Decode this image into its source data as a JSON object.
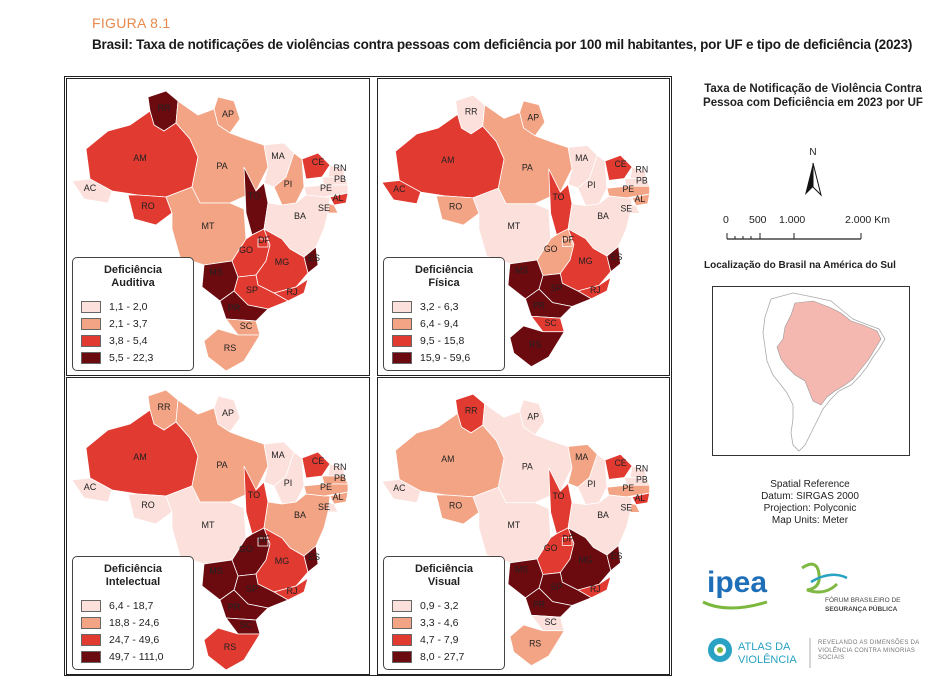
{
  "figure_label": "FIGURA 8.1",
  "figure_title": "Brasil: Taxa de notificações de violências contra pessoas com deficiência por 100 mil habitantes, por UF e tipo de deficiência (2023)",
  "colors": {
    "c1": "#fbe0dc",
    "c2": "#f2a485",
    "c3": "#e03a31",
    "c4": "#6b0a0f",
    "border": "#bbbbbb"
  },
  "panels": [
    {
      "id": "auditiva",
      "title_line1": "Deficiência",
      "title_line2": "Auditiva",
      "classes": [
        "1,1 - 2,0",
        "2,1 - 3,7",
        "3,8 - 5,4",
        "5,5 - 22,3"
      ],
      "uf_class": {
        "RR": 4,
        "AP": 2,
        "AM": 3,
        "PA": 2,
        "AC": 1,
        "RO": 3,
        "MT": 2,
        "TO": 4,
        "MA": 1,
        "PI": 2,
        "CE": 3,
        "RN": 1,
        "PB": 1,
        "PE": 1,
        "AL": 3,
        "SE": 2,
        "BA": 1,
        "GO": 3,
        "DF": 3,
        "MG": 3,
        "ES": 4,
        "RJ": 3,
        "SP": 3,
        "MS": 4,
        "PR": 4,
        "SC": 2,
        "RS": 2
      }
    },
    {
      "id": "fisica",
      "title_line1": "Deficiência",
      "title_line2": "Física",
      "classes": [
        "3,2 - 6,3",
        "6,4 - 9,4",
        "9,5 - 15,8",
        "15,9 - 59,6"
      ],
      "uf_class": {
        "RR": 1,
        "AP": 2,
        "AM": 3,
        "PA": 2,
        "AC": 3,
        "RO": 2,
        "MT": 1,
        "TO": 3,
        "MA": 1,
        "PI": 1,
        "CE": 3,
        "RN": 1,
        "PB": 1,
        "PE": 2,
        "AL": 2,
        "SE": 1,
        "BA": 1,
        "GO": 2,
        "DF": 2,
        "MG": 3,
        "ES": 4,
        "RJ": 3,
        "SP": 4,
        "MS": 4,
        "PR": 4,
        "SC": 3,
        "RS": 4
      }
    },
    {
      "id": "intelectual",
      "title_line1": "Deficiência",
      "title_line2": "Intelectual",
      "classes": [
        "6,4 - 18,7",
        "18,8 - 24,6",
        "24,7 - 49,6",
        "49,7 - 111,0"
      ],
      "uf_class": {
        "RR": 2,
        "AP": 1,
        "AM": 3,
        "PA": 2,
        "AC": 1,
        "RO": 1,
        "MT": 1,
        "TO": 3,
        "MA": 1,
        "PI": 1,
        "CE": 3,
        "RN": 1,
        "PB": 2,
        "PE": 2,
        "AL": 2,
        "SE": 1,
        "BA": 2,
        "GO": 4,
        "DF": 4,
        "MG": 3,
        "ES": 4,
        "RJ": 3,
        "SP": 4,
        "MS": 4,
        "PR": 4,
        "SC": 4,
        "RS": 3
      }
    },
    {
      "id": "visual",
      "title_line1": "Deficiência",
      "title_line2": "Visual",
      "classes": [
        "0,9 - 3,2",
        "3,3 - 4,6",
        "4,7 - 7,9",
        "8,0 - 27,7"
      ],
      "uf_class": {
        "RR": 3,
        "AP": 1,
        "AM": 2,
        "PA": 1,
        "AC": 1,
        "RO": 2,
        "MT": 1,
        "TO": 3,
        "MA": 2,
        "PI": 1,
        "CE": 3,
        "RN": 1,
        "PB": 1,
        "PE": 2,
        "AL": 3,
        "SE": 2,
        "BA": 1,
        "GO": 3,
        "DF": 3,
        "MG": 4,
        "ES": 4,
        "RJ": 3,
        "SP": 4,
        "MS": 4,
        "PR": 4,
        "SC": 1,
        "RS": 2
      }
    }
  ],
  "side_title": "Taxa de Notificação de Violência Contra Pessoa com Deficiência em 2023 por UF",
  "north_label": "N",
  "scale_labels": [
    "0",
    "500",
    "1.000",
    "2.000 Km"
  ],
  "inset_title": "Localização do Brasil na América do Sul",
  "spatial": [
    "Spatial Reference",
    "Datum: SIRGAS 2000",
    "Projection: Polyconic",
    "Map Units: Meter"
  ],
  "logos": {
    "ipea": "ipea",
    "fbsp_line1": "FÓRUM BRASILEIRO DE",
    "fbsp_line2": "SEGURANÇA PÚBLICA",
    "atlas_line1": "ATLAS DA",
    "atlas_line2": "VIOLÊNCIA",
    "atlas_sub": "REVELANDO AS DIMENSÕES DA VIOLÊNCIA CONTRA MINORIAS SOCIAIS"
  }
}
